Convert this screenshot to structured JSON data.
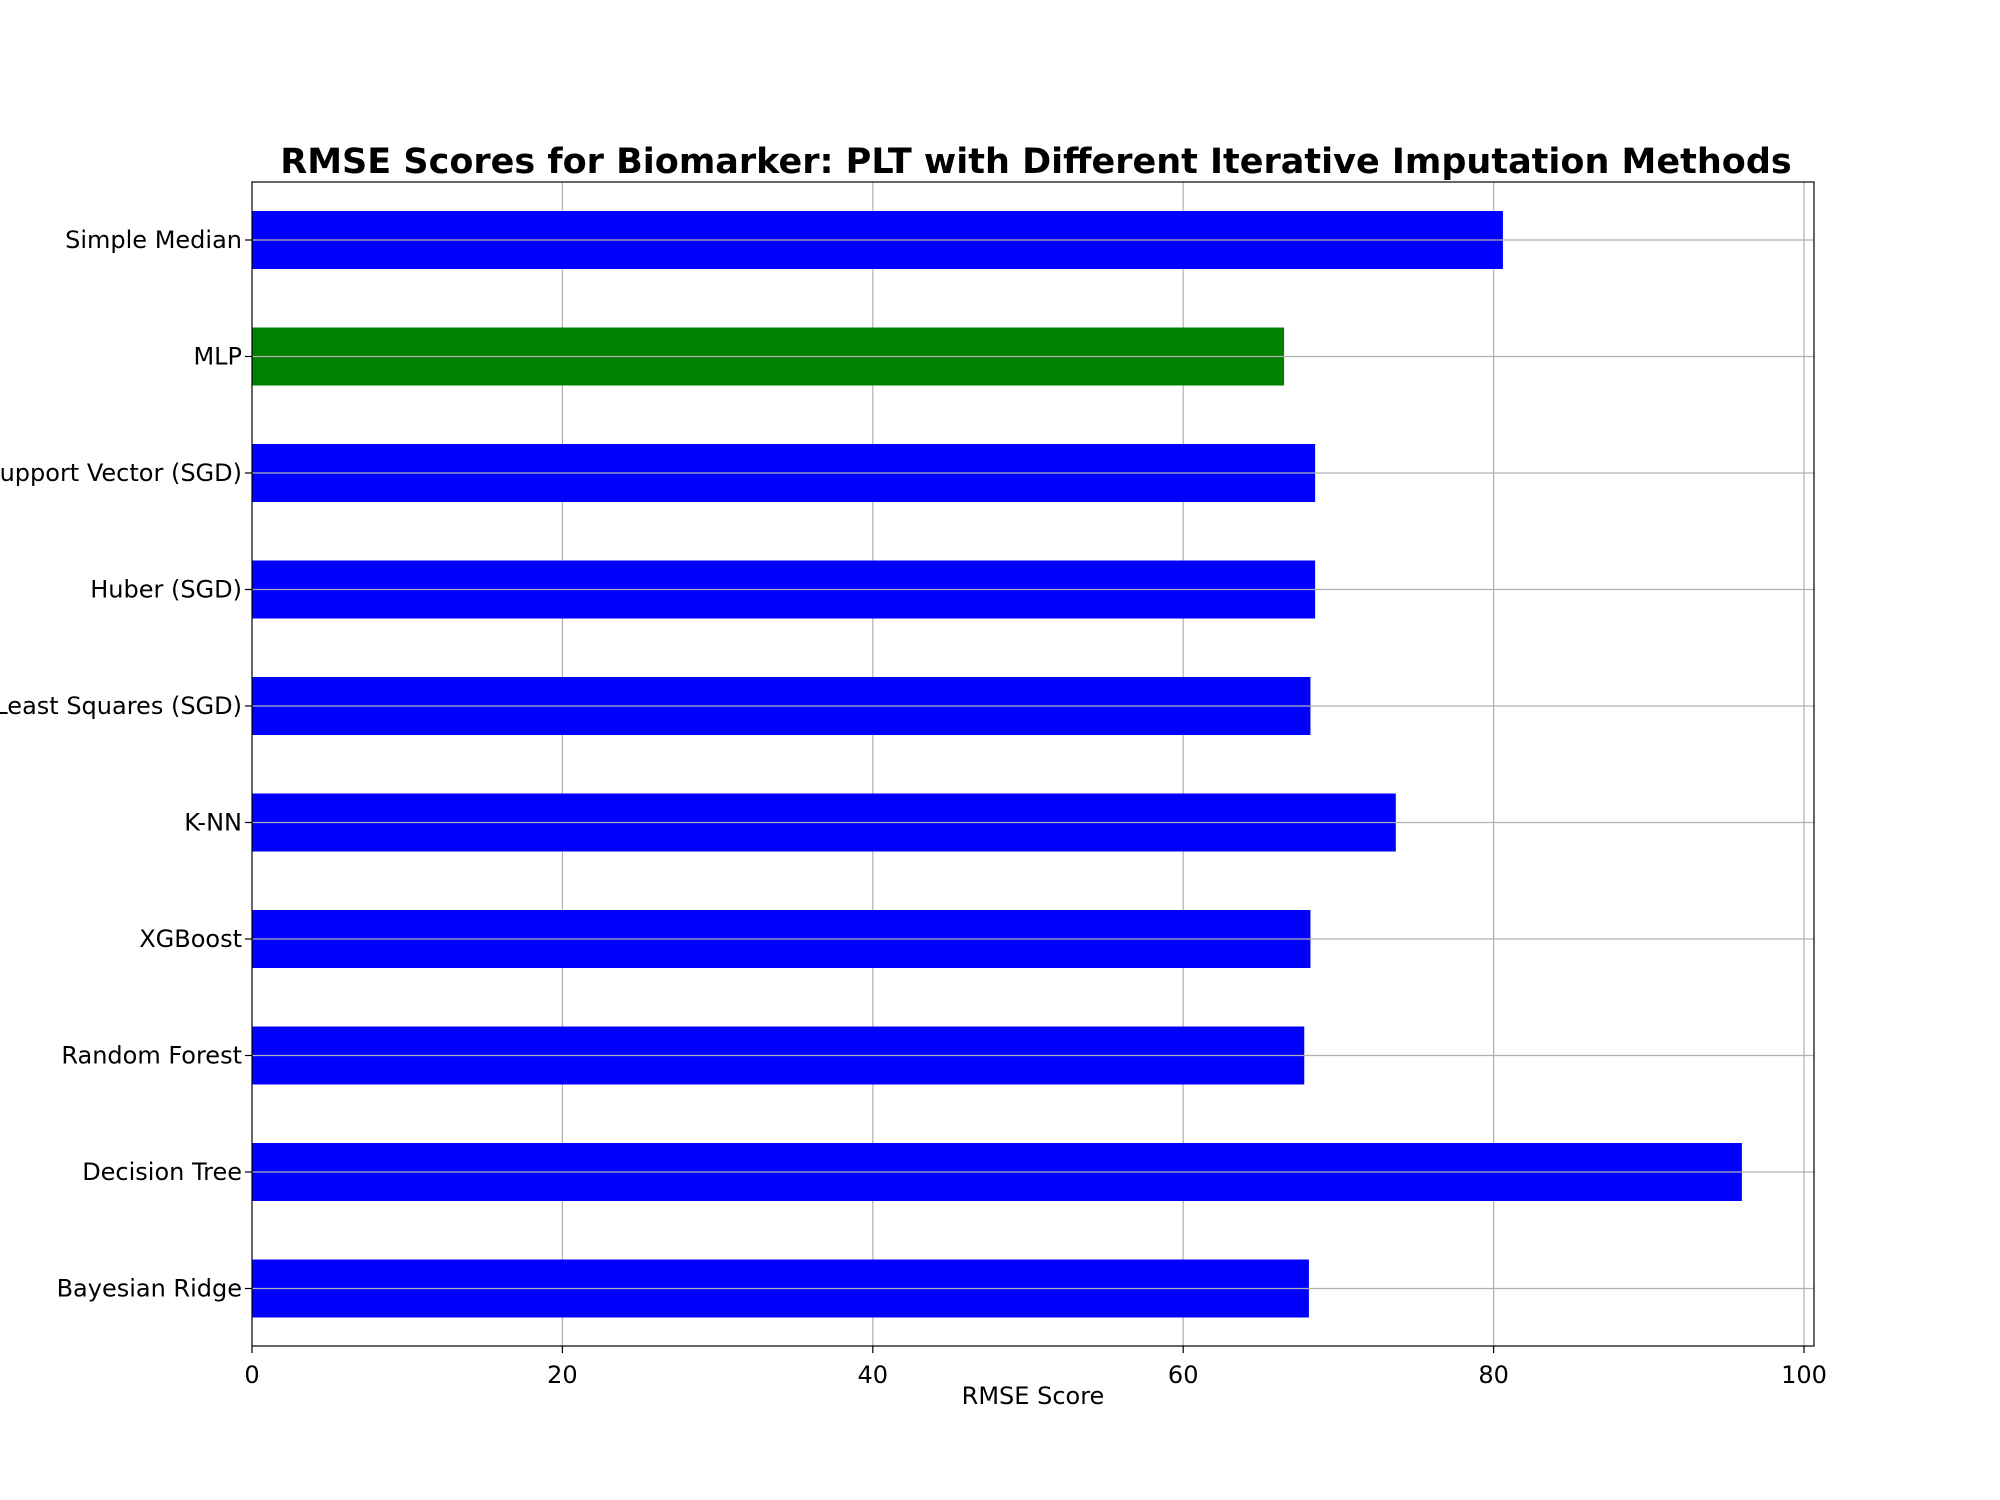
{
  "chart_data": {
    "type": "bar",
    "orientation": "horizontal",
    "title": "RMSE Scores for Biomarker: PLT with Different Iterative Imputation Methods",
    "xlabel": "RMSE Score",
    "ylabel": "",
    "xlim": [
      0,
      100
    ],
    "x_ticks": [
      "0",
      "20",
      "40",
      "60",
      "80",
      "100"
    ],
    "grid": true,
    "categories": [
      "Simple Median",
      "MLP",
      "Support Vector (SGD)",
      "Huber (SGD)",
      "Least Squares (SGD)",
      "K-NN",
      "XGBoost",
      "Random Forest",
      "Decision Tree",
      "Bayesian Ridge"
    ],
    "values": [
      80.6,
      66.5,
      68.5,
      68.5,
      68.2,
      73.7,
      68.2,
      67.8,
      96.0,
      68.1
    ],
    "colors": [
      "#0000ff",
      "#008000",
      "#0000ff",
      "#0000ff",
      "#0000ff",
      "#0000ff",
      "#0000ff",
      "#0000ff",
      "#0000ff",
      "#0000ff"
    ],
    "highlight": {
      "category": "MLP",
      "color": "#008000"
    },
    "default_color": "#0000ff"
  }
}
